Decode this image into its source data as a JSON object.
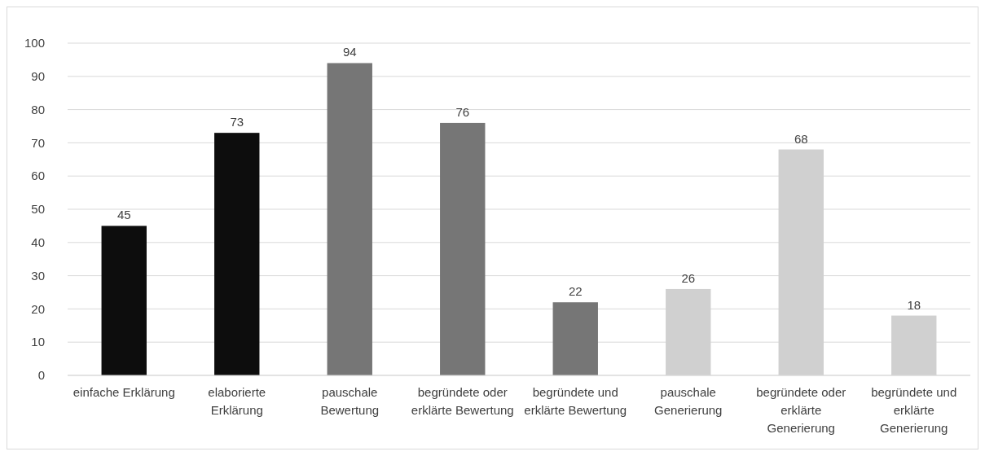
{
  "chart_data": {
    "type": "bar",
    "categories": [
      "einfache Erklärung",
      "elaborierte Erklärung",
      "pauschale Bewertung",
      "begründete oder erklärte Bewertung",
      "begründete und erklärte Bewertung",
      "pauschale Generierung",
      "begründete oder erklärte Generierung",
      "begründete und erklärte Generierung"
    ],
    "values": [
      45,
      73,
      94,
      76,
      22,
      26,
      68,
      18
    ],
    "colors": [
      "#0d0d0d",
      "#0d0d0d",
      "#767676",
      "#767676",
      "#767676",
      "#d0d0d0",
      "#d0d0d0",
      "#d0d0d0"
    ],
    "ylim": [
      0,
      100
    ],
    "yticks": [
      0,
      10,
      20,
      30,
      40,
      50,
      60,
      70,
      80,
      90,
      100
    ],
    "grid": "y",
    "data_labels": true
  }
}
